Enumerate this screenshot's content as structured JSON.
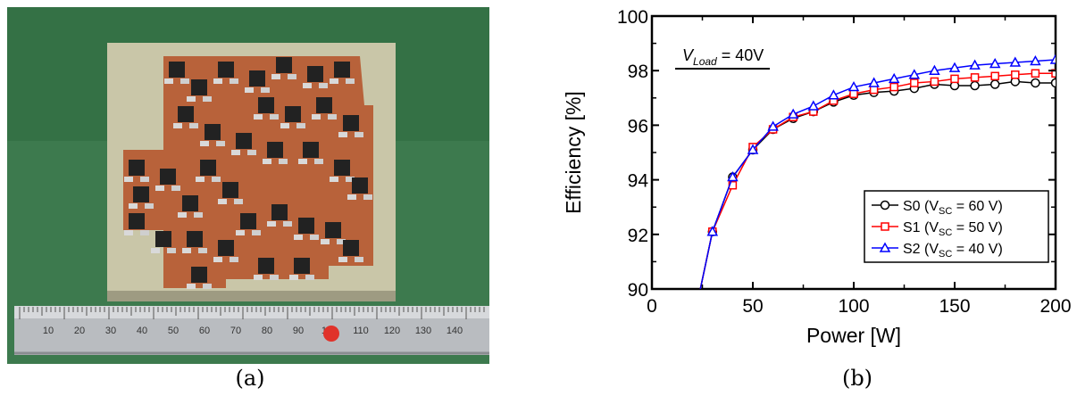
{
  "figure": {
    "caption_a": "(a)",
    "caption_b": "(b)"
  },
  "photo": {
    "ruler_marks": [
      "10",
      "20",
      "30",
      "40",
      "50",
      "60",
      "70",
      "80",
      "90",
      "100",
      "110",
      "120",
      "130",
      "140"
    ]
  },
  "chart_data": {
    "type": "line",
    "xlabel": "Power [W]",
    "ylabel": "Efficiency [%]",
    "xlim": [
      0,
      200
    ],
    "ylim": [
      90,
      100
    ],
    "xticks": [
      0,
      50,
      100,
      150,
      200
    ],
    "yticks": [
      90,
      92,
      94,
      96,
      98,
      100
    ],
    "grid": false,
    "legend_placement": "bottom-right",
    "annotation": {
      "main": "V",
      "sub": "Load",
      "rest": " = 40V"
    },
    "series": [
      {
        "name": "S0 (VSC = 60 V)",
        "label_main": "S0 (V",
        "label_sub": "SC",
        "label_rest": " = 60 V)",
        "color": "#000000",
        "marker": "circle",
        "x": [
          24,
          30,
          40,
          50,
          60,
          70,
          80,
          90,
          100,
          110,
          120,
          130,
          140,
          150,
          160,
          170,
          180,
          190,
          200
        ],
        "y": [
          90,
          92.1,
          94.1,
          95.1,
          95.85,
          96.25,
          96.5,
          96.85,
          97.1,
          97.2,
          97.25,
          97.35,
          97.5,
          97.45,
          97.45,
          97.5,
          97.6,
          97.55,
          97.55
        ]
      },
      {
        "name": "S1 (VSC = 50 V)",
        "label_main": "S1 (V",
        "label_sub": "SC",
        "label_rest": " = 50 V)",
        "color": "#ff0000",
        "marker": "square",
        "x": [
          24,
          30,
          40,
          50,
          60,
          70,
          80,
          90,
          100,
          110,
          120,
          130,
          140,
          150,
          160,
          170,
          180,
          190,
          200
        ],
        "y": [
          90,
          92.1,
          93.8,
          95.2,
          95.85,
          96.3,
          96.5,
          96.9,
          97.15,
          97.3,
          97.4,
          97.55,
          97.6,
          97.7,
          97.75,
          97.8,
          97.85,
          97.9,
          97.9
        ]
      },
      {
        "name": "S2 (VSC = 40 V)",
        "label_main": "S2 (V",
        "label_sub": "SC",
        "label_rest": " = 40 V)",
        "color": "#0000ff",
        "marker": "triangle",
        "x": [
          24,
          30,
          40,
          50,
          60,
          70,
          80,
          90,
          100,
          110,
          120,
          130,
          140,
          150,
          160,
          170,
          180,
          190,
          200
        ],
        "y": [
          90,
          92.1,
          94.1,
          95.1,
          95.95,
          96.4,
          96.7,
          97.1,
          97.4,
          97.55,
          97.7,
          97.85,
          98.0,
          98.1,
          98.2,
          98.25,
          98.3,
          98.35,
          98.4
        ]
      }
    ]
  }
}
